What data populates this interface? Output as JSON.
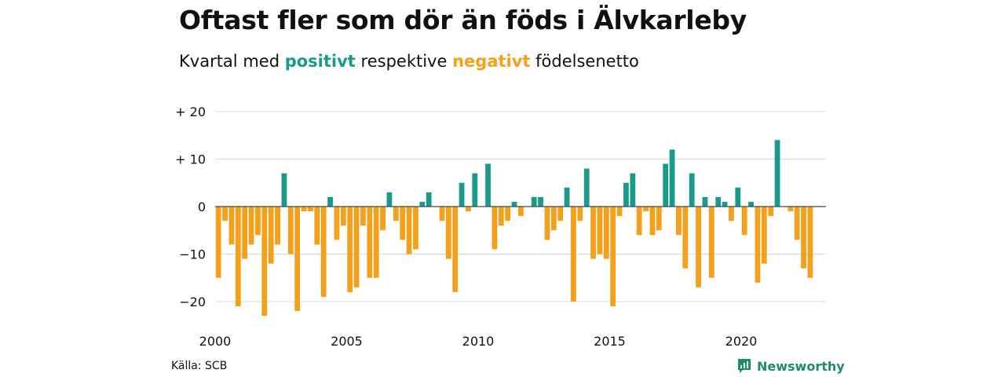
{
  "title": "Oftast fler som dör än föds i Älvkarleby",
  "subtitle": {
    "prefix": "Kvartal med",
    "positive_word": "positivt",
    "middle": "respektive",
    "negative_word": "negativt",
    "suffix": "födelsenetto"
  },
  "source": "Källa: SCB",
  "brand": "Newsworthy",
  "brand_icon": "bar-chart-logo-icon",
  "colors": {
    "positive": "#1a9a8a",
    "negative": "#f5a01a",
    "grid": "#d9d9d9",
    "axis": "#444444",
    "brand": "#1e8a6e"
  },
  "chart_data": {
    "type": "bar",
    "x_start_year": 2000,
    "x_step": 0.25,
    "values": [
      -15,
      -3,
      -8,
      -21,
      -11,
      -8,
      -6,
      -23,
      -12,
      -8,
      7,
      -10,
      -22,
      -1,
      -1,
      -8,
      -19,
      2,
      -7,
      -4,
      -18,
      -17,
      -4,
      -15,
      -15,
      -5,
      3,
      -3,
      -7,
      -10,
      -9,
      1,
      3,
      0,
      -3,
      -11,
      -18,
      5,
      -1,
      7,
      0,
      9,
      -9,
      -4,
      -3,
      1,
      -2,
      0,
      2,
      2,
      -7,
      -5,
      -3,
      4,
      -20,
      -3,
      8,
      -11,
      -10,
      -11,
      -21,
      -2,
      5,
      7,
      -6,
      -1,
      -6,
      -5,
      9,
      12,
      -6,
      -13,
      7,
      -17,
      2,
      -15,
      2,
      1,
      -3,
      4,
      -6,
      1,
      -16,
      -12,
      -2,
      14,
      0,
      -1,
      -7,
      -13,
      -15
    ],
    "y_ticks": [
      {
        "value": 20,
        "label": "+ 20"
      },
      {
        "value": 10,
        "label": "+ 10"
      },
      {
        "value": 0,
        "label": "0"
      },
      {
        "value": -10,
        "label": "−10"
      },
      {
        "value": -20,
        "label": "−20"
      }
    ],
    "x_ticks": [
      {
        "value": 2000,
        "label": "2000"
      },
      {
        "value": 2005,
        "label": "2005"
      },
      {
        "value": 2010,
        "label": "2010"
      },
      {
        "value": 2015,
        "label": "2015"
      },
      {
        "value": 2020,
        "label": "2020"
      }
    ],
    "ylim": [
      -23,
      20
    ],
    "xlim": [
      2000,
      2023
    ],
    "grid": true
  }
}
